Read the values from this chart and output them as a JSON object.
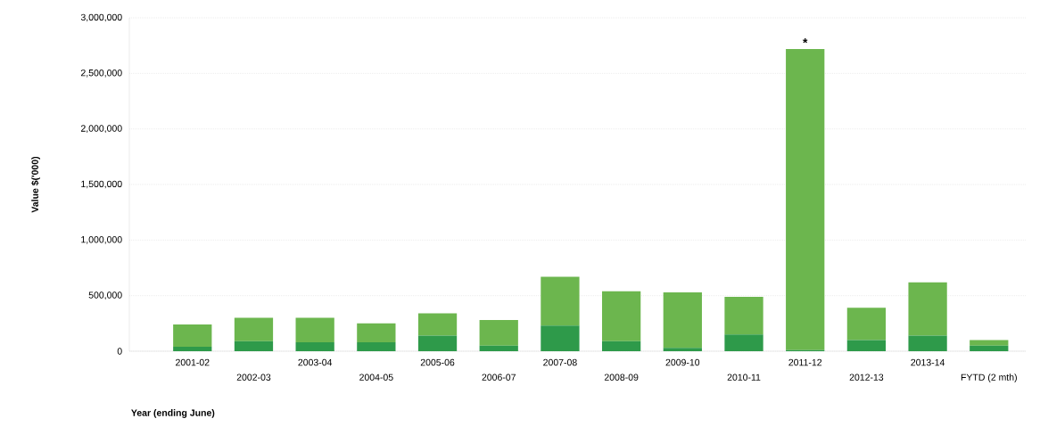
{
  "chart_data": {
    "type": "bar",
    "stacked": true,
    "xlabel": "Year (ending June)",
    "ylabel": "Value $('000)",
    "categories": [
      "2001-02",
      "2002-03",
      "2003-04",
      "2004-05",
      "2005-06",
      "2006-07",
      "2007-08",
      "2008-09",
      "2009-10",
      "2010-11",
      "2011-12",
      "2012-13",
      "2013-14",
      "FYTD (2 mth)"
    ],
    "series": [
      {
        "color": "#2e9a4a",
        "values": [
          40000,
          90000,
          80000,
          80000,
          140000,
          50000,
          230000,
          90000,
          30000,
          150000,
          10000,
          100000,
          140000,
          50000
        ]
      },
      {
        "color": "#6cb64e",
        "values": [
          200000,
          210000,
          220000,
          170000,
          200000,
          230000,
          440000,
          450000,
          500000,
          340000,
          2710000,
          290000,
          480000,
          50000
        ]
      }
    ],
    "ylim": [
      0,
      3000000
    ],
    "yticks": [
      {
        "value": 0,
        "label": "0"
      },
      {
        "value": 500000,
        "label": "500,000"
      },
      {
        "value": 1000000,
        "label": "1,000,000"
      },
      {
        "value": 1500000,
        "label": "1,500,000"
      },
      {
        "value": 2000000,
        "label": "2,000,000"
      },
      {
        "value": 2500000,
        "label": "2,500,000"
      },
      {
        "value": 3000000,
        "label": "3,000,000"
      }
    ],
    "grid": "y",
    "annotations": [
      {
        "text": "*",
        "x": "2011-12",
        "y": 2720000
      }
    ]
  }
}
